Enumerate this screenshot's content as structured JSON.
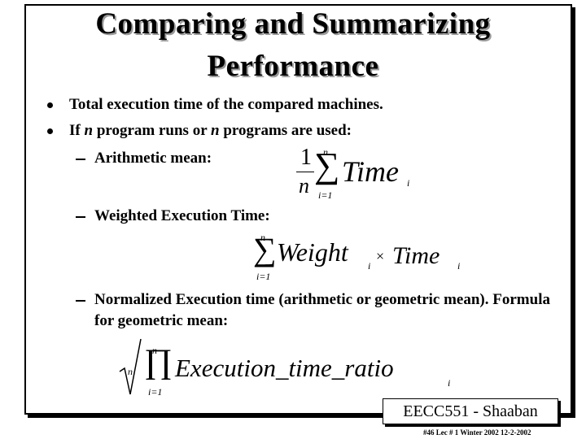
{
  "title_lines": [
    "Comparing and Summarizing",
    "Performance"
  ],
  "bullets": [
    "Total execution time of the compared machines."
  ],
  "bullet_2_parts": [
    "If ",
    "n",
    " program runs or ",
    "n",
    " programs are used:"
  ],
  "sub_items": [
    "Arithmetic mean:",
    "Weighted Execution Time:",
    "Normalized Execution time (arithmetic or geometric mean).  Formula for geometric mean:"
  ],
  "formulas": {
    "arithmetic": {
      "numerator": "1",
      "denominator": "n",
      "operator": "∑",
      "upper": "n",
      "lower": "i=1",
      "term": "Time",
      "subscript": "i"
    },
    "weighted": {
      "operator": "∑",
      "upper": "n",
      "lower": "i=1",
      "term1": "Weight",
      "subscript1": "i",
      "times": "×",
      "term2": "Time",
      "subscript2": "i"
    },
    "geometric": {
      "root_index": "n",
      "operator": "∏",
      "upper": "n",
      "lower": "i=1",
      "term": "Execution_time_ratio",
      "subscript": "i"
    }
  },
  "footer": {
    "box": "EECC551 - Shaaban",
    "note": "#46   Lec # 1  Winter 2002   12-2-2002"
  }
}
